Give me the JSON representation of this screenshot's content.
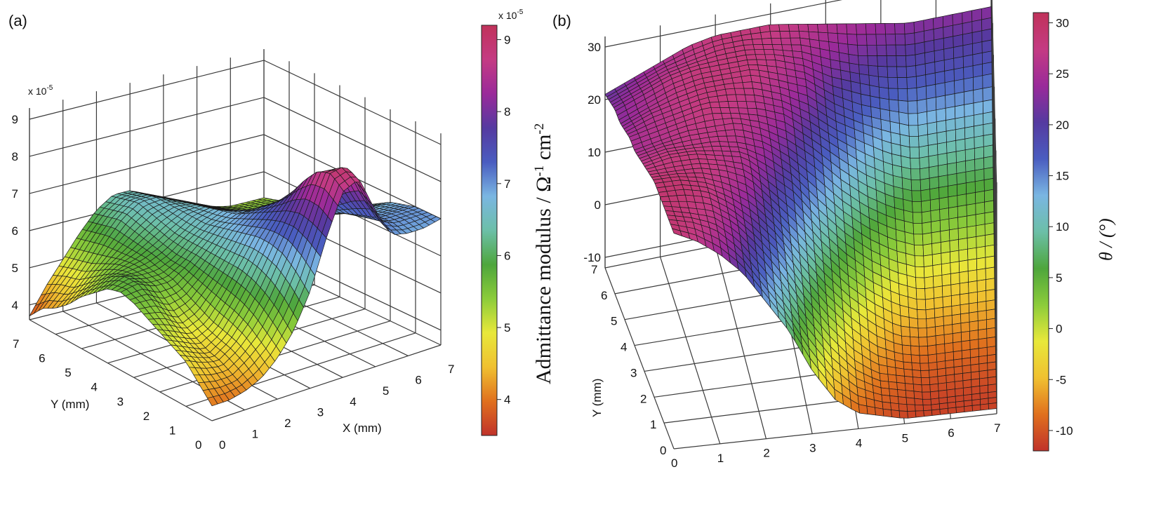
{
  "chart_data": [
    {
      "panel": "(a)",
      "type": "surface3d",
      "xlabel": "X (mm)",
      "ylabel": "Y (mm)",
      "x_ticks": [
        "0",
        "1",
        "2",
        "3",
        "4",
        "5",
        "6",
        "7"
      ],
      "y_ticks": [
        "0",
        "1",
        "2",
        "3",
        "4",
        "5",
        "6",
        "7"
      ],
      "z_ticks": [
        "4",
        "5",
        "6",
        "7",
        "8",
        "9"
      ],
      "z_multiplier": "x 10-5",
      "zlim": [
        3.6,
        9
      ],
      "colorbar": {
        "title": "Admittance modulus / Ω-1 cm-2",
        "multiplier": "x 10-5",
        "ticks": [
          "4",
          "5",
          "6",
          "7",
          "8",
          "9"
        ],
        "range": [
          3.5,
          9.2
        ]
      },
      "colormap": [
        "#c0322a",
        "#e0701e",
        "#f0c030",
        "#e8e83a",
        "#8ccc3a",
        "#4ea63c",
        "#6cbfa8",
        "#7ab6e2",
        "#4a5dc0",
        "#553aa0",
        "#9a2a9a",
        "#c43b83",
        "#c0325a"
      ],
      "surface_rows_y_from_0_to_7": [
        [
          4.0,
          4.0,
          4.1,
          4.3,
          4.7,
          5.3,
          6.2,
          7.5,
          8.6,
          8.8,
          7.8,
          7.0,
          6.9,
          6.9,
          7.0
        ],
        [
          4.4,
          4.3,
          4.3,
          4.6,
          5.0,
          5.7,
          6.6,
          7.7,
          8.9,
          9.0,
          8.0,
          7.2,
          7.0,
          7.0,
          7.0
        ],
        [
          4.8,
          4.6,
          4.5,
          4.8,
          5.3,
          6.0,
          6.9,
          7.8,
          8.8,
          8.7,
          7.8,
          7.1,
          7.0,
          7.0,
          7.0
        ],
        [
          5.0,
          4.8,
          4.6,
          4.9,
          5.5,
          6.2,
          7.0,
          7.7,
          8.4,
          8.2,
          7.5,
          7.0,
          6.9,
          6.9,
          6.9
        ],
        [
          5.2,
          5.0,
          4.8,
          5.0,
          5.6,
          6.3,
          7.0,
          7.5,
          7.9,
          7.6,
          7.2,
          6.9,
          6.8,
          6.8,
          6.8
        ],
        [
          5.4,
          5.3,
          5.0,
          5.2,
          5.7,
          6.3,
          6.9,
          7.3,
          7.5,
          7.2,
          6.9,
          6.7,
          6.6,
          6.6,
          6.6
        ],
        [
          5.6,
          5.6,
          5.3,
          5.4,
          5.8,
          6.3,
          6.8,
          7.1,
          7.2,
          6.9,
          6.7,
          6.5,
          6.4,
          6.4,
          6.4
        ],
        [
          5.7,
          5.8,
          5.6,
          5.6,
          5.9,
          6.3,
          6.7,
          6.9,
          6.9,
          6.7,
          6.5,
          6.3,
          6.2,
          6.2,
          6.2
        ],
        [
          5.6,
          5.8,
          5.7,
          5.7,
          5.9,
          6.3,
          6.6,
          6.8,
          6.7,
          6.5,
          6.3,
          6.1,
          6.0,
          6.0,
          6.0
        ],
        [
          5.3,
          5.6,
          5.7,
          5.8,
          6.0,
          6.3,
          6.6,
          6.7,
          6.5,
          6.3,
          6.1,
          5.9,
          5.8,
          5.8,
          5.8
        ],
        [
          5.0,
          5.3,
          5.6,
          5.8,
          6.1,
          6.4,
          6.6,
          6.6,
          6.4,
          6.2,
          6.0,
          5.8,
          5.7,
          5.7,
          5.7
        ],
        [
          4.6,
          5.0,
          5.4,
          5.8,
          6.2,
          6.5,
          6.6,
          6.5,
          6.3,
          6.1,
          5.9,
          5.7,
          5.6,
          5.6,
          5.6
        ],
        [
          4.3,
          4.7,
          5.2,
          5.8,
          6.3,
          6.6,
          6.6,
          6.4,
          6.2,
          6.0,
          5.8,
          5.6,
          5.5,
          5.5,
          5.5
        ],
        [
          4.1,
          4.6,
          5.1,
          5.7,
          6.2,
          6.5,
          6.5,
          6.3,
          6.1,
          5.9,
          5.7,
          5.5,
          5.4,
          5.4,
          5.4
        ],
        [
          3.7,
          4.4,
          5.0,
          5.6,
          6.1,
          6.4,
          6.4,
          6.2,
          6.0,
          5.8,
          5.6,
          5.4,
          5.3,
          5.3,
          5.3
        ]
      ]
    },
    {
      "panel": "(b)",
      "type": "surface3d",
      "xlabel": "",
      "ylabel": "Y (mm)",
      "x_ticks": [
        "0",
        "1",
        "2",
        "3",
        "4",
        "5",
        "6",
        "7"
      ],
      "y_ticks": [
        "0",
        "1",
        "2",
        "3",
        "4",
        "5",
        "6",
        "7"
      ],
      "z_ticks": [
        "-10",
        "0",
        "10",
        "20",
        "30"
      ],
      "zlim": [
        -12,
        31
      ],
      "colorbar": {
        "title": "θ / (°)",
        "ticks": [
          "-10",
          "-5",
          "0",
          "5",
          "10",
          "15",
          "20",
          "25",
          "30"
        ],
        "range": [
          -12,
          31
        ]
      },
      "colormap": [
        "#c0322a",
        "#e0701e",
        "#f0c030",
        "#e8e83a",
        "#8ccc3a",
        "#4ea63c",
        "#6cbfa8",
        "#7ab6e2",
        "#4a5dc0",
        "#553aa0",
        "#9a2a9a",
        "#c43b83",
        "#c0325a"
      ],
      "surface_rows_y_from_0_to_7": [
        [
          29,
          27,
          24,
          20,
          14,
          8,
          0,
          -6,
          -9,
          -10,
          -11,
          -11,
          -11,
          -11,
          -11
        ],
        [
          29,
          28,
          26,
          22,
          16,
          10,
          3,
          -3,
          -7,
          -9,
          -10,
          -11,
          -11,
          -11,
          -11
        ],
        [
          29,
          28,
          27,
          24,
          19,
          13,
          6,
          0,
          -5,
          -8,
          -9,
          -10,
          -10,
          -10,
          -10
        ],
        [
          29,
          29,
          28,
          25,
          21,
          16,
          9,
          3,
          -2,
          -6,
          -8,
          -9,
          -9,
          -9,
          -9
        ],
        [
          29,
          29,
          28,
          26,
          23,
          18,
          12,
          6,
          1,
          -3,
          -6,
          -7,
          -7,
          -7,
          -7
        ],
        [
          28,
          28,
          28,
          27,
          25,
          20,
          15,
          9,
          4,
          0,
          -3,
          -5,
          -5,
          -5,
          -5
        ],
        [
          27,
          28,
          28,
          27,
          26,
          22,
          18,
          12,
          7,
          3,
          0,
          -2,
          -2,
          -2,
          -2
        ],
        [
          26,
          27,
          27,
          27,
          26,
          24,
          20,
          15,
          10,
          6,
          3,
          1,
          1,
          1,
          1
        ],
        [
          25,
          26,
          27,
          27,
          27,
          25,
          22,
          18,
          13,
          9,
          6,
          4,
          4,
          4,
          4
        ],
        [
          25,
          26,
          27,
          28,
          27,
          26,
          24,
          20,
          16,
          12,
          9,
          7,
          7,
          7,
          7
        ],
        [
          24,
          26,
          27,
          28,
          28,
          27,
          25,
          22,
          18,
          15,
          12,
          10,
          10,
          10,
          10
        ],
        [
          23,
          25,
          27,
          28,
          28,
          28,
          26,
          24,
          20,
          17,
          15,
          13,
          13,
          13,
          13
        ],
        [
          23,
          25,
          27,
          28,
          28,
          28,
          27,
          25,
          22,
          20,
          18,
          17,
          17,
          17,
          17
        ],
        [
          22,
          24,
          26,
          27,
          28,
          28,
          27,
          26,
          24,
          22,
          21,
          20,
          20,
          20,
          20
        ],
        [
          21,
          23,
          25,
          27,
          28,
          28,
          28,
          27,
          26,
          25,
          24,
          23,
          23,
          23,
          23
        ]
      ]
    }
  ]
}
